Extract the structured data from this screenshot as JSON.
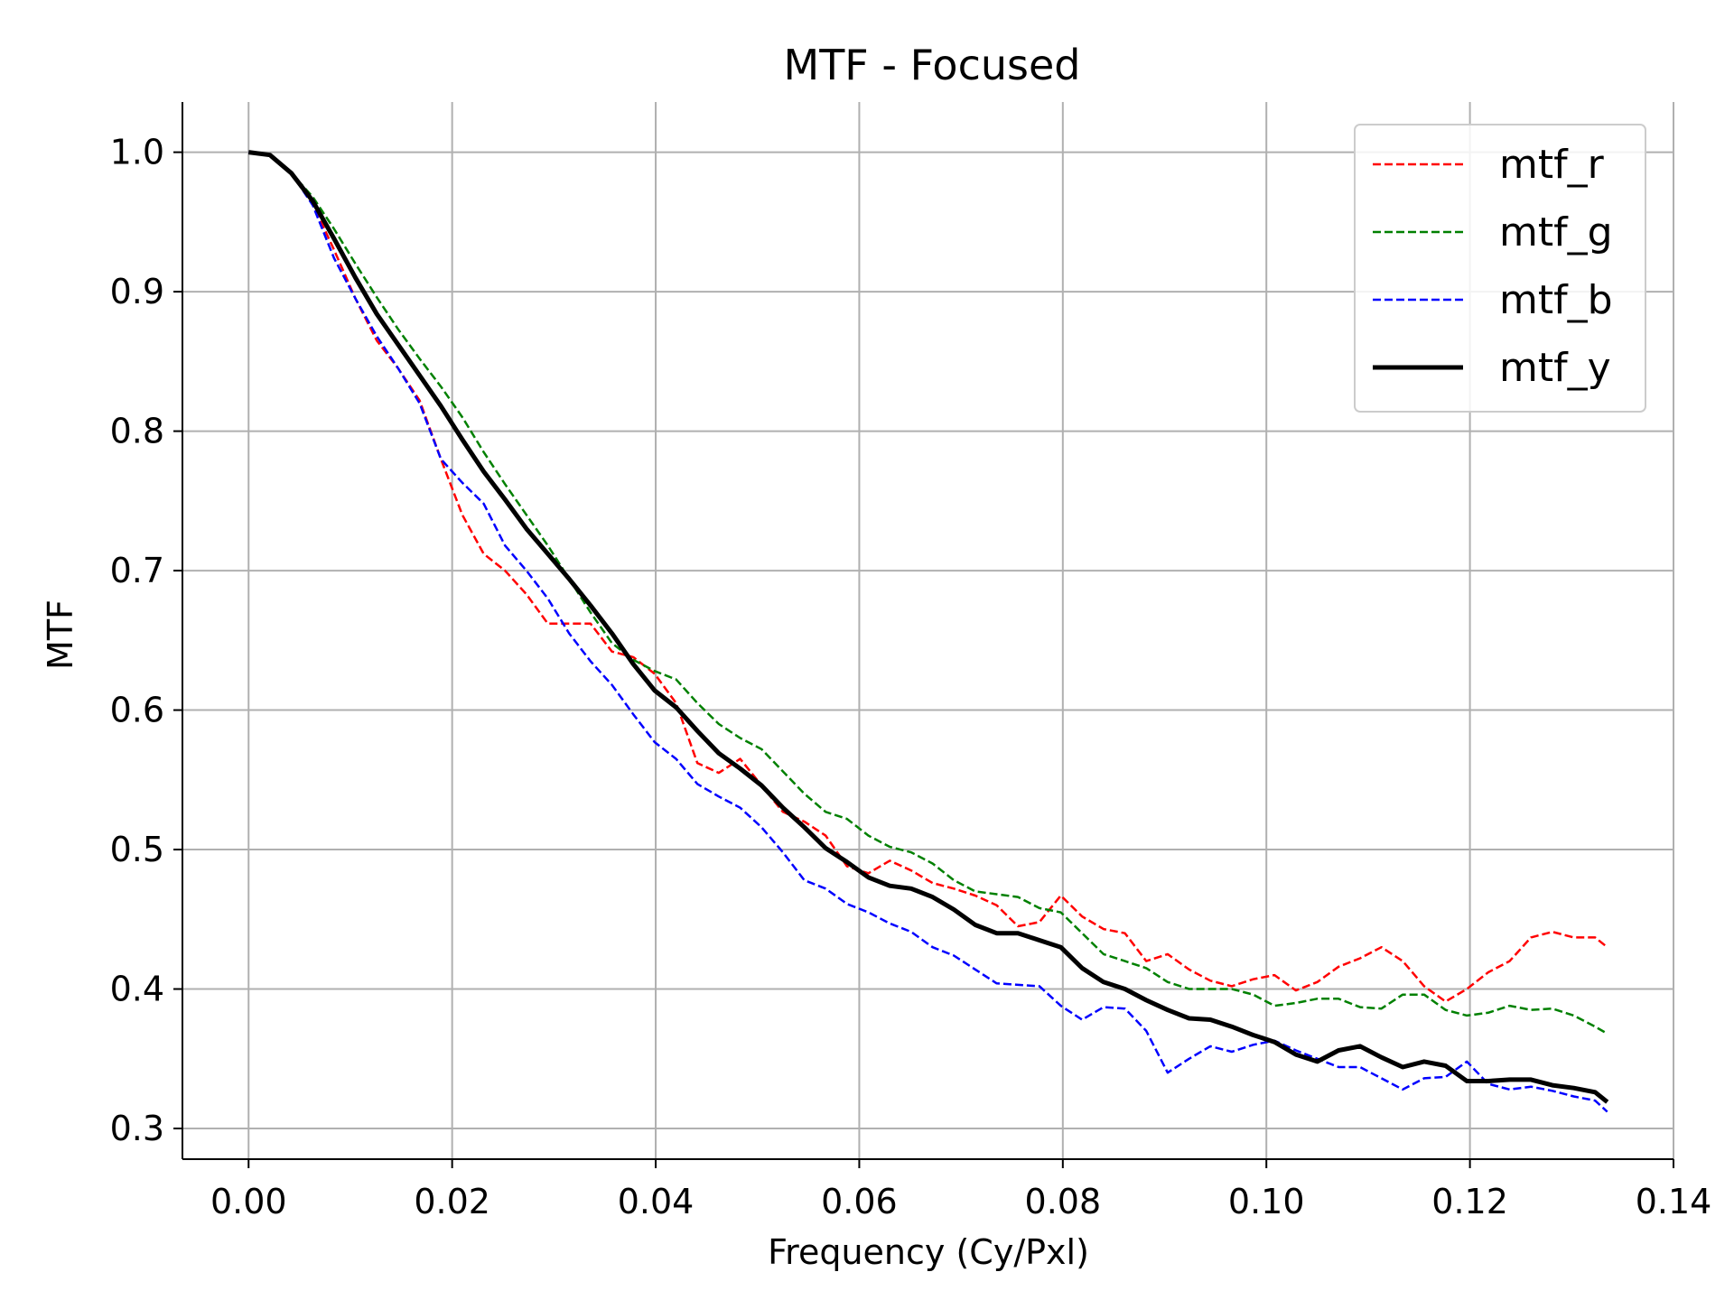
{
  "chart_data": {
    "type": "line",
    "title": "MTF - Focused",
    "xlabel": "Frequency (Cy/Pxl)",
    "ylabel": "MTF",
    "xlim": [
      -0.0065,
      0.14
    ],
    "ylim": [
      0.278,
      1.036
    ],
    "xticks": [
      "0.00",
      "0.02",
      "0.04",
      "0.06",
      "0.08",
      "0.10",
      "0.12",
      "0.14"
    ],
    "yticks": [
      "0.3",
      "0.4",
      "0.5",
      "0.6",
      "0.7",
      "0.8",
      "0.9",
      "1.0"
    ],
    "grid": true,
    "legend_position": "top-right",
    "x": [
      0.0,
      0.0021,
      0.0042,
      0.0063,
      0.0084,
      0.0105,
      0.0126,
      0.0147,
      0.0168,
      0.0189,
      0.021,
      0.0231,
      0.0252,
      0.0273,
      0.0294,
      0.0315,
      0.0336,
      0.0357,
      0.0378,
      0.0399,
      0.042,
      0.0441,
      0.0462,
      0.0483,
      0.0504,
      0.0525,
      0.0546,
      0.0567,
      0.0588,
      0.0609,
      0.063,
      0.0651,
      0.0672,
      0.0693,
      0.0714,
      0.0735,
      0.0756,
      0.0777,
      0.0798,
      0.0819,
      0.084,
      0.0861,
      0.0882,
      0.0903,
      0.0924,
      0.0945,
      0.0966,
      0.0987,
      0.1008,
      0.1029,
      0.105,
      0.1071,
      0.1092,
      0.1113,
      0.1134,
      0.1155,
      0.1176,
      0.1197,
      0.1218,
      0.1239,
      0.126,
      0.1281,
      0.1302,
      0.1323,
      0.1335
    ],
    "series": [
      {
        "name": "mtf_r",
        "color": "#ff0000",
        "style": "dashed",
        "values": [
          1.0,
          0.998,
          0.985,
          0.963,
          0.93,
          0.895,
          0.865,
          0.845,
          0.822,
          0.78,
          0.74,
          0.712,
          0.7,
          0.683,
          0.662,
          0.662,
          0.662,
          0.642,
          0.638,
          0.626,
          0.605,
          0.562,
          0.555,
          0.565,
          0.546,
          0.527,
          0.52,
          0.51,
          0.488,
          0.483,
          0.492,
          0.485,
          0.476,
          0.472,
          0.467,
          0.46,
          0.445,
          0.448,
          0.467,
          0.452,
          0.443,
          0.44,
          0.42,
          0.425,
          0.414,
          0.406,
          0.402,
          0.407,
          0.41,
          0.399,
          0.405,
          0.416,
          0.422,
          0.43,
          0.42,
          0.402,
          0.391,
          0.4,
          0.412,
          0.42,
          0.437,
          0.441,
          0.437,
          0.437,
          0.43
        ]
      },
      {
        "name": "mtf_g",
        "color": "#008000",
        "style": "dashed",
        "values": [
          1.0,
          0.998,
          0.985,
          0.968,
          0.945,
          0.92,
          0.896,
          0.873,
          0.852,
          0.832,
          0.81,
          0.785,
          0.762,
          0.74,
          0.718,
          0.694,
          0.67,
          0.648,
          0.636,
          0.628,
          0.622,
          0.605,
          0.59,
          0.58,
          0.572,
          0.556,
          0.54,
          0.527,
          0.522,
          0.51,
          0.502,
          0.498,
          0.49,
          0.478,
          0.47,
          0.468,
          0.466,
          0.458,
          0.455,
          0.44,
          0.425,
          0.42,
          0.415,
          0.405,
          0.4,
          0.4,
          0.4,
          0.396,
          0.388,
          0.39,
          0.393,
          0.393,
          0.387,
          0.386,
          0.396,
          0.396,
          0.385,
          0.381,
          0.383,
          0.388,
          0.385,
          0.386,
          0.381,
          0.373,
          0.368
        ]
      },
      {
        "name": "mtf_b",
        "color": "#0000ff",
        "style": "dashed",
        "values": [
          1.0,
          0.998,
          0.985,
          0.962,
          0.924,
          0.895,
          0.868,
          0.845,
          0.82,
          0.78,
          0.763,
          0.748,
          0.718,
          0.7,
          0.68,
          0.655,
          0.635,
          0.618,
          0.597,
          0.577,
          0.565,
          0.547,
          0.538,
          0.53,
          0.516,
          0.498,
          0.478,
          0.472,
          0.461,
          0.455,
          0.447,
          0.441,
          0.43,
          0.424,
          0.414,
          0.404,
          0.403,
          0.402,
          0.388,
          0.378,
          0.387,
          0.386,
          0.37,
          0.34,
          0.35,
          0.359,
          0.355,
          0.36,
          0.363,
          0.356,
          0.35,
          0.344,
          0.344,
          0.336,
          0.328,
          0.336,
          0.337,
          0.348,
          0.332,
          0.328,
          0.33,
          0.327,
          0.323,
          0.32,
          0.312
        ]
      },
      {
        "name": "mtf_y",
        "color": "#000000",
        "style": "solid",
        "values": [
          1.0,
          0.998,
          0.985,
          0.965,
          0.938,
          0.91,
          0.884,
          0.862,
          0.84,
          0.818,
          0.794,
          0.771,
          0.751,
          0.73,
          0.712,
          0.694,
          0.675,
          0.655,
          0.633,
          0.614,
          0.602,
          0.585,
          0.569,
          0.558,
          0.546,
          0.53,
          0.516,
          0.501,
          0.491,
          0.48,
          0.474,
          0.472,
          0.466,
          0.457,
          0.446,
          0.44,
          0.44,
          0.435,
          0.43,
          0.415,
          0.405,
          0.4,
          0.392,
          0.385,
          0.379,
          0.378,
          0.373,
          0.367,
          0.362,
          0.353,
          0.348,
          0.356,
          0.359,
          0.351,
          0.344,
          0.348,
          0.345,
          0.334,
          0.334,
          0.335,
          0.335,
          0.331,
          0.329,
          0.326,
          0.319
        ]
      }
    ]
  }
}
